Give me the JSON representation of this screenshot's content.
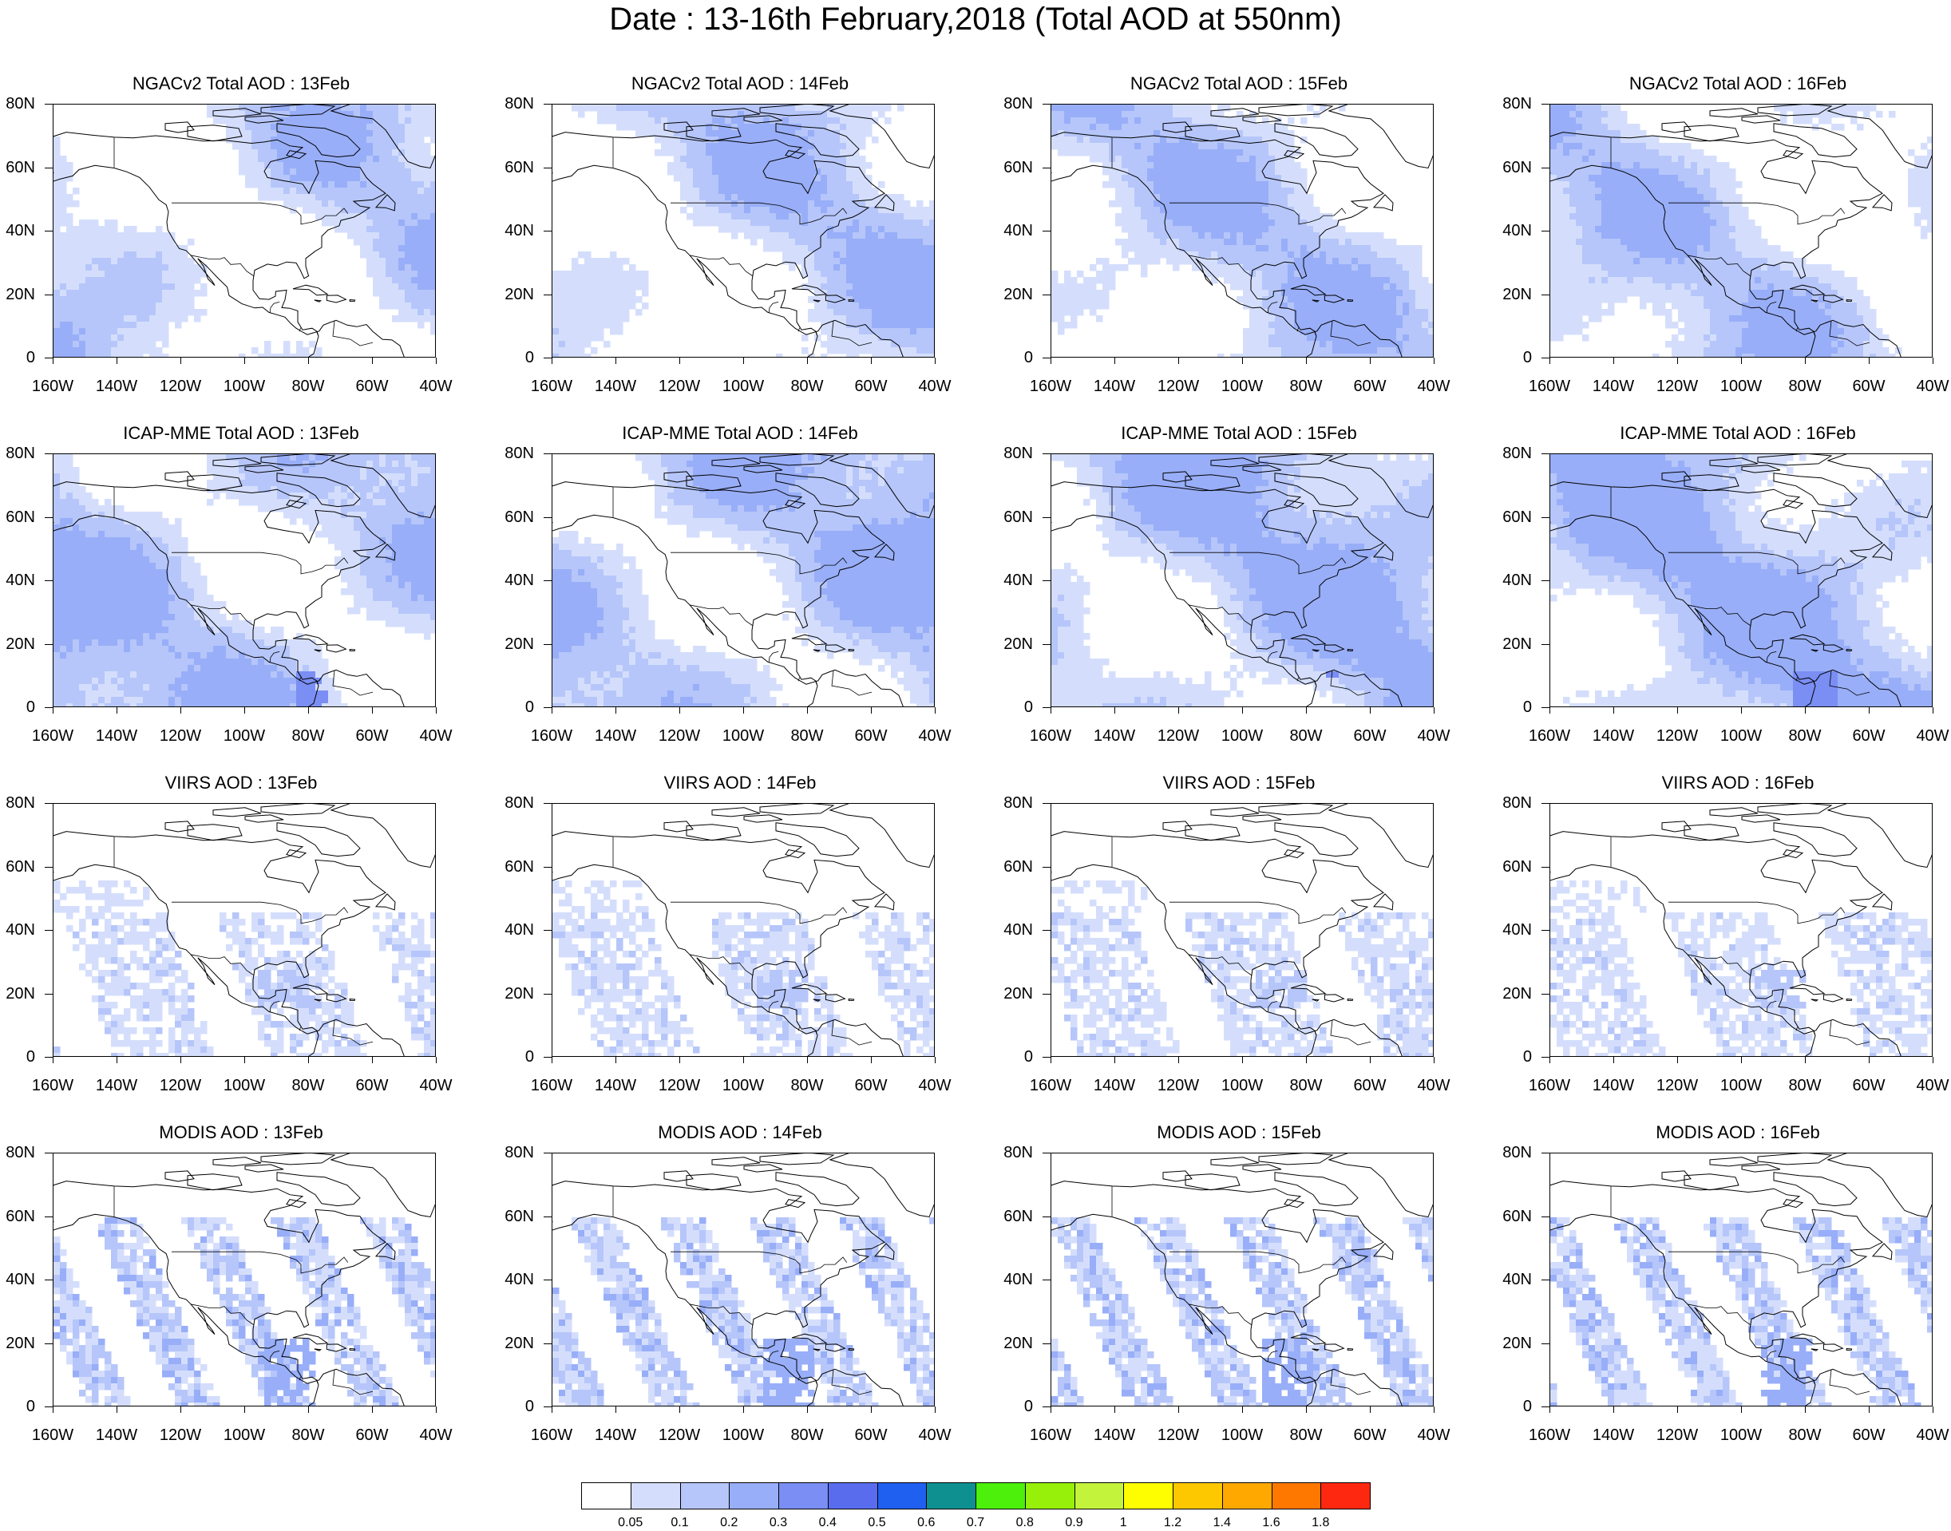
{
  "title": "Date : 13-16th February,2018 (Total AOD at 550nm)",
  "lat_labels": [
    "80N",
    "60N",
    "40N",
    "20N",
    "0"
  ],
  "lon_labels": [
    "160W",
    "140W",
    "120W",
    "100W",
    "80W",
    "60W",
    "40W"
  ],
  "rows": [
    {
      "product": "NGACv2",
      "style": "model-light",
      "panels": [
        {
          "title": "NGACv2 Total AOD : 13Feb"
        },
        {
          "title": "NGACv2 Total AOD : 14Feb"
        },
        {
          "title": "NGACv2 Total AOD : 15Feb"
        },
        {
          "title": "NGACv2 Total AOD : 16Feb"
        }
      ]
    },
    {
      "product": "ICAP-MME",
      "style": "model-dense",
      "panels": [
        {
          "title": "ICAP-MME Total AOD : 13Feb"
        },
        {
          "title": "ICAP-MME Total AOD : 14Feb"
        },
        {
          "title": "ICAP-MME Total AOD : 15Feb"
        },
        {
          "title": "ICAP-MME Total AOD : 16Feb"
        }
      ]
    },
    {
      "product": "VIIRS",
      "style": "satellite-sparse",
      "panels": [
        {
          "title": "VIIRS AOD : 13Feb"
        },
        {
          "title": "VIIRS AOD : 14Feb"
        },
        {
          "title": "VIIRS AOD : 15Feb"
        },
        {
          "title": "VIIRS AOD : 16Feb"
        }
      ]
    },
    {
      "product": "MODIS",
      "style": "satellite-swath",
      "panels": [
        {
          "title": "MODIS AOD : 13Feb"
        },
        {
          "title": "MODIS AOD : 14Feb"
        },
        {
          "title": "MODIS AOD : 15Feb"
        },
        {
          "title": "MODIS AOD : 16Feb"
        }
      ]
    }
  ],
  "colorbar": {
    "colors": [
      "#ffffff",
      "#d4defc",
      "#b6c6fa",
      "#98aef8",
      "#7a8ef4",
      "#5a6cee",
      "#1f60f0",
      "#0e9090",
      "#4cf00a",
      "#96f00a",
      "#c4f33c",
      "#fefe00",
      "#fec800",
      "#fea800",
      "#fe7800",
      "#fe2810"
    ],
    "labels": [
      "0.05",
      "0.1",
      "0.2",
      "0.3",
      "0.4",
      "0.5",
      "0.6",
      "0.7",
      "0.8",
      "0.9",
      "1",
      "1.2",
      "1.4",
      "1.6",
      "1.8"
    ]
  }
}
